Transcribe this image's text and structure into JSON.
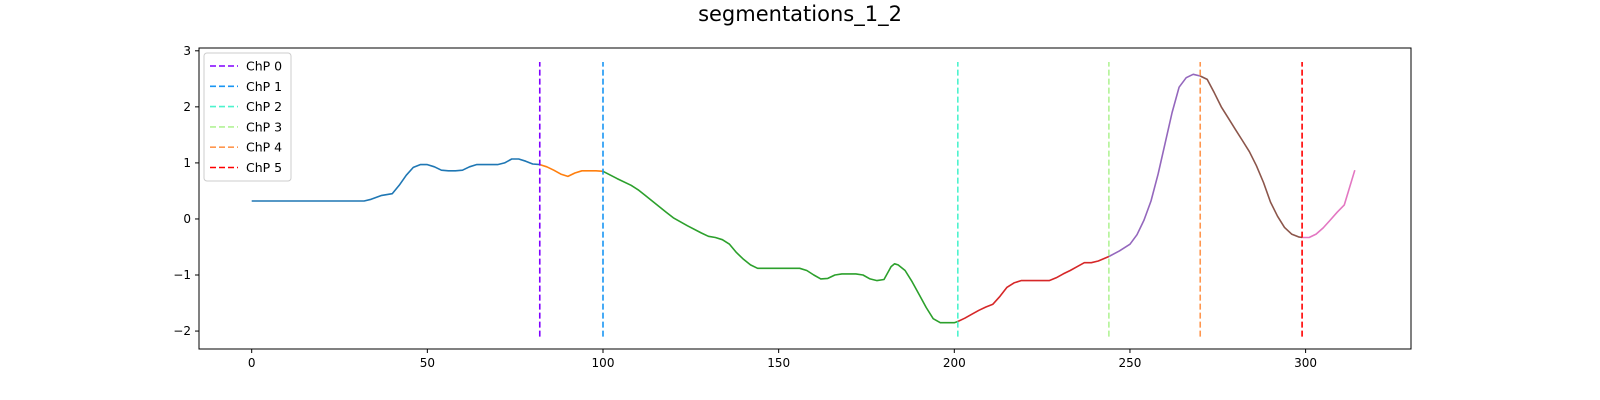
{
  "chart_data": {
    "type": "line",
    "title": "segmentations_1_2",
    "xlabel": "",
    "ylabel": "",
    "xlim": [
      -15,
      330
    ],
    "ylim": [
      -2.32,
      3.05
    ],
    "xticks": [
      0,
      50,
      100,
      150,
      200,
      250,
      300
    ],
    "yticks": [
      -2,
      -1,
      0,
      1,
      2,
      3
    ],
    "grid": false,
    "legend_position": "top-left",
    "change_points": [
      {
        "name": "ChP 0",
        "x": 82,
        "color": "#8000ff"
      },
      {
        "name": "ChP 1",
        "x": 100,
        "color": "#1996f3"
      },
      {
        "name": "ChP 2",
        "x": 201,
        "color": "#4df3ce"
      },
      {
        "name": "ChP 3",
        "x": 244,
        "color": "#b2f396"
      },
      {
        "name": "ChP 4",
        "x": 270,
        "color": "#ff964f"
      },
      {
        "name": "ChP 5",
        "x": 299,
        "color": "#ff0000"
      }
    ],
    "change_point_y_range": [
      -2.1,
      2.8
    ],
    "series": [
      {
        "color": "#1f77b4",
        "x": [
          0,
          32,
          34,
          37,
          40,
          42,
          44,
          46,
          48,
          50,
          52,
          54,
          56,
          58,
          60,
          62,
          64,
          66,
          68,
          70,
          72,
          74,
          76,
          78,
          80,
          82
        ],
        "y": [
          0.32,
          0.32,
          0.35,
          0.42,
          0.45,
          0.6,
          0.78,
          0.92,
          0.97,
          0.97,
          0.93,
          0.87,
          0.86,
          0.86,
          0.87,
          0.93,
          0.97,
          0.97,
          0.97,
          0.97,
          1.0,
          1.07,
          1.07,
          1.03,
          0.98,
          0.97
        ]
      },
      {
        "color": "#ff7f0e",
        "x": [
          82,
          84,
          86,
          88,
          90,
          92,
          94,
          96,
          98,
          100
        ],
        "y": [
          0.97,
          0.93,
          0.87,
          0.8,
          0.76,
          0.82,
          0.86,
          0.86,
          0.86,
          0.85
        ]
      },
      {
        "color": "#2ca02c",
        "x": [
          100,
          104,
          108,
          110,
          112,
          114,
          116,
          118,
          120,
          124,
          128,
          130,
          132,
          134,
          136,
          138,
          140,
          142,
          144,
          146,
          150,
          154,
          156,
          158,
          160,
          162,
          164,
          166,
          168,
          170,
          172,
          174,
          176,
          178,
          180,
          182,
          183,
          184,
          186,
          188,
          190,
          192,
          194,
          196,
          198,
          200,
          201
        ],
        "y": [
          0.85,
          0.72,
          0.6,
          0.52,
          0.42,
          0.32,
          0.22,
          0.12,
          0.02,
          -0.12,
          -0.25,
          -0.31,
          -0.33,
          -0.37,
          -0.45,
          -0.6,
          -0.72,
          -0.82,
          -0.88,
          -0.88,
          -0.88,
          -0.88,
          -0.88,
          -0.92,
          -1.0,
          -1.07,
          -1.06,
          -1.0,
          -0.98,
          -0.98,
          -0.98,
          -1.0,
          -1.07,
          -1.1,
          -1.08,
          -0.85,
          -0.8,
          -0.82,
          -0.92,
          -1.12,
          -1.35,
          -1.58,
          -1.78,
          -1.85,
          -1.85,
          -1.85,
          -1.83
        ]
      },
      {
        "color": "#d62728",
        "x": [
          201,
          203,
          205,
          207,
          209,
          211,
          213,
          215,
          217,
          219,
          221,
          223,
          225,
          227,
          229,
          231,
          233,
          235,
          237,
          239,
          241,
          244
        ],
        "y": [
          -1.83,
          -1.77,
          -1.7,
          -1.63,
          -1.57,
          -1.52,
          -1.38,
          -1.22,
          -1.14,
          -1.1,
          -1.1,
          -1.1,
          -1.1,
          -1.1,
          -1.05,
          -0.98,
          -0.92,
          -0.85,
          -0.78,
          -0.78,
          -0.75,
          -0.67
        ]
      },
      {
        "color": "#9467bd",
        "x": [
          244,
          247,
          250,
          252,
          254,
          256,
          258,
          260,
          262,
          264,
          266,
          268,
          270
        ],
        "y": [
          -0.67,
          -0.57,
          -0.45,
          -0.28,
          -0.02,
          0.32,
          0.8,
          1.35,
          1.9,
          2.35,
          2.52,
          2.58,
          2.55
        ]
      },
      {
        "color": "#8c564b",
        "x": [
          270,
          272,
          274,
          276,
          278,
          280,
          282,
          284,
          286,
          288,
          290,
          292,
          294,
          296,
          298,
          299
        ],
        "y": [
          2.55,
          2.49,
          2.25,
          2.0,
          1.8,
          1.6,
          1.4,
          1.2,
          0.95,
          0.65,
          0.3,
          0.05,
          -0.15,
          -0.27,
          -0.32,
          -0.33
        ]
      },
      {
        "color": "#e377c2",
        "x": [
          299,
          301,
          303,
          305,
          307,
          309,
          311,
          314
        ],
        "y": [
          -0.33,
          -0.33,
          -0.27,
          -0.16,
          -0.02,
          0.12,
          0.25,
          0.87
        ]
      }
    ]
  }
}
